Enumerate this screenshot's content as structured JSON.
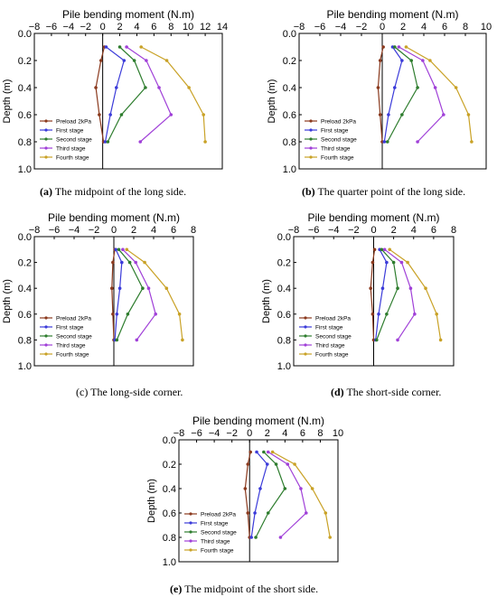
{
  "colors": {
    "preload": "#8B3A1E",
    "first": "#3B3BD9",
    "second": "#2E7D2E",
    "third": "#A040D8",
    "fourth": "#C9A227",
    "axis": "#000000"
  },
  "chart_data": [
    {
      "type": "line",
      "id": "a",
      "panel_letter": "(a)",
      "caption": "The midpoint of the long side.",
      "xlabel": "Pile bending moment (N.m)",
      "ylabel": "Depth (m)",
      "xlim": [
        -8,
        14
      ],
      "xticks": [
        -8,
        -6,
        -4,
        -2,
        0,
        2,
        4,
        6,
        8,
        10,
        12,
        14
      ],
      "xtick_labels": [
        "−8",
        "−6",
        "−4",
        "−2",
        "0",
        "2",
        "4",
        "6",
        "8",
        "10",
        "12",
        "14"
      ],
      "ylim": [
        0.0,
        1.0
      ],
      "yticks": [
        0.0,
        0.2,
        0.4,
        0.6,
        0.8,
        1.0
      ],
      "ytick_labels": [
        "0.0",
        "0.2",
        "0.4",
        "0.6",
        "0.8",
        "1.0"
      ],
      "legend": "lower-left",
      "grid": false,
      "series": [
        {
          "name": "Preload 2kPa",
          "color_key": "preload",
          "points": [
            [
              0.2,
              0.1
            ],
            [
              -0.2,
              0.2
            ],
            [
              -0.8,
              0.4
            ],
            [
              -0.4,
              0.6
            ],
            [
              0.1,
              0.8
            ]
          ]
        },
        {
          "name": "First stage",
          "color_key": "first",
          "points": [
            [
              0.4,
              0.1
            ],
            [
              2.5,
              0.2
            ],
            [
              1.6,
              0.4
            ],
            [
              0.9,
              0.6
            ],
            [
              0.3,
              0.8
            ]
          ]
        },
        {
          "name": "Second stage",
          "color_key": "second",
          "points": [
            [
              2.0,
              0.1
            ],
            [
              3.7,
              0.2
            ],
            [
              5.0,
              0.4
            ],
            [
              2.2,
              0.6
            ],
            [
              0.6,
              0.8
            ]
          ]
        },
        {
          "name": "Third stage",
          "color_key": "third",
          "points": [
            [
              2.8,
              0.1
            ],
            [
              5.1,
              0.2
            ],
            [
              6.6,
              0.4
            ],
            [
              8.0,
              0.6
            ],
            [
              4.4,
              0.8
            ]
          ]
        },
        {
          "name": "Fourth stage",
          "color_key": "fourth",
          "points": [
            [
              4.5,
              0.1
            ],
            [
              7.5,
              0.2
            ],
            [
              10.1,
              0.4
            ],
            [
              11.8,
              0.6
            ],
            [
              12.0,
              0.8
            ]
          ]
        }
      ]
    },
    {
      "type": "line",
      "id": "b",
      "panel_letter": "(b)",
      "caption": "The quarter point of the long side.",
      "xlabel": "Pile bending moment (N.m)",
      "ylabel": "Depth (m)",
      "xlim": [
        -8,
        10
      ],
      "xticks": [
        -8,
        -6,
        -4,
        -2,
        0,
        2,
        4,
        6,
        8,
        10
      ],
      "xtick_labels": [
        "−8",
        "−6",
        "−4",
        "−2",
        "0",
        "2",
        "4",
        "6",
        "8",
        "10"
      ],
      "ylim": [
        0.0,
        1.0
      ],
      "yticks": [
        0.0,
        0.2,
        0.4,
        0.6,
        0.8,
        1.0
      ],
      "ytick_labels": [
        "0.0",
        "0.2",
        "0.4",
        "0.6",
        "0.8",
        "1.0"
      ],
      "legend": "lower-left",
      "grid": false,
      "series": [
        {
          "name": "Preload 2kPa",
          "color_key": "preload",
          "points": [
            [
              0.1,
              0.1
            ],
            [
              -0.2,
              0.2
            ],
            [
              -0.4,
              0.4
            ],
            [
              -0.2,
              0.6
            ],
            [
              0.0,
              0.8
            ]
          ]
        },
        {
          "name": "First stage",
          "color_key": "first",
          "points": [
            [
              1.0,
              0.1
            ],
            [
              1.9,
              0.2
            ],
            [
              1.2,
              0.4
            ],
            [
              0.6,
              0.6
            ],
            [
              0.2,
              0.8
            ]
          ]
        },
        {
          "name": "Second stage",
          "color_key": "second",
          "points": [
            [
              1.2,
              0.1
            ],
            [
              2.8,
              0.2
            ],
            [
              3.4,
              0.4
            ],
            [
              1.9,
              0.6
            ],
            [
              0.5,
              0.8
            ]
          ]
        },
        {
          "name": "Third stage",
          "color_key": "third",
          "points": [
            [
              1.6,
              0.1
            ],
            [
              3.9,
              0.2
            ],
            [
              5.1,
              0.4
            ],
            [
              5.9,
              0.6
            ],
            [
              3.4,
              0.8
            ]
          ]
        },
        {
          "name": "Fourth stage",
          "color_key": "fourth",
          "points": [
            [
              2.3,
              0.1
            ],
            [
              4.6,
              0.2
            ],
            [
              7.1,
              0.4
            ],
            [
              8.3,
              0.6
            ],
            [
              8.6,
              0.8
            ]
          ]
        }
      ]
    },
    {
      "type": "line",
      "id": "c",
      "panel_letter": "(c)",
      "caption": "The long-side corner.",
      "xlabel": "Pile bending moment (N.m)",
      "ylabel": "Depth (m)",
      "xlim": [
        -8,
        8
      ],
      "xticks": [
        -8,
        -6,
        -4,
        -2,
        0,
        2,
        4,
        6,
        8
      ],
      "xtick_labels": [
        "−8",
        "−6",
        "−4",
        "−2",
        "0",
        "2",
        "4",
        "6",
        "8"
      ],
      "ylim": [
        0.0,
        1.0
      ],
      "yticks": [
        0.0,
        0.2,
        0.4,
        0.6,
        0.8,
        1.0
      ],
      "ytick_labels": [
        "0.0",
        "0.2",
        "0.4",
        "0.6",
        "0.8",
        "1.0"
      ],
      "legend": "lower-left",
      "grid": false,
      "series": [
        {
          "name": "Preload 2kPa",
          "color_key": "preload",
          "points": [
            [
              0.1,
              0.1
            ],
            [
              -0.1,
              0.2
            ],
            [
              -0.2,
              0.4
            ],
            [
              -0.1,
              0.6
            ],
            [
              0.0,
              0.8
            ]
          ]
        },
        {
          "name": "First stage",
          "color_key": "first",
          "points": [
            [
              0.2,
              0.1
            ],
            [
              0.8,
              0.2
            ],
            [
              0.6,
              0.4
            ],
            [
              0.3,
              0.6
            ],
            [
              0.1,
              0.8
            ]
          ]
        },
        {
          "name": "Second stage",
          "color_key": "second",
          "points": [
            [
              0.5,
              0.1
            ],
            [
              1.6,
              0.2
            ],
            [
              2.9,
              0.4
            ],
            [
              1.4,
              0.6
            ],
            [
              0.3,
              0.8
            ]
          ]
        },
        {
          "name": "Third stage",
          "color_key": "third",
          "points": [
            [
              0.9,
              0.1
            ],
            [
              2.2,
              0.2
            ],
            [
              3.5,
              0.4
            ],
            [
              4.2,
              0.6
            ],
            [
              2.3,
              0.8
            ]
          ]
        },
        {
          "name": "Fourth stage",
          "color_key": "fourth",
          "points": [
            [
              1.3,
              0.1
            ],
            [
              3.1,
              0.2
            ],
            [
              5.3,
              0.4
            ],
            [
              6.6,
              0.6
            ],
            [
              6.9,
              0.8
            ]
          ]
        }
      ]
    },
    {
      "type": "line",
      "id": "d",
      "panel_letter": "(d)",
      "caption": "The short-side corner.",
      "xlabel": "Pile bending moment (N.m)",
      "ylabel": "Depth (m)",
      "xlim": [
        -8,
        8
      ],
      "xticks": [
        -8,
        -6,
        -4,
        -2,
        0,
        2,
        4,
        6,
        8
      ],
      "xtick_labels": [
        "−8",
        "−6",
        "−4",
        "−2",
        "0",
        "2",
        "4",
        "6",
        "8"
      ],
      "ylim": [
        0.0,
        1.0
      ],
      "yticks": [
        0.0,
        0.2,
        0.4,
        0.6,
        0.8,
        1.0
      ],
      "ytick_labels": [
        "0.0",
        "0.2",
        "0.4",
        "0.6",
        "0.8",
        "1.0"
      ],
      "legend": "lower-left",
      "grid": false,
      "series": [
        {
          "name": "Preload 2kPa",
          "color_key": "preload",
          "points": [
            [
              0.1,
              0.1
            ],
            [
              -0.1,
              0.2
            ],
            [
              -0.3,
              0.4
            ],
            [
              -0.1,
              0.6
            ],
            [
              0.0,
              0.8
            ]
          ]
        },
        {
          "name": "First stage",
          "color_key": "first",
          "points": [
            [
              0.6,
              0.1
            ],
            [
              1.3,
              0.2
            ],
            [
              0.9,
              0.4
            ],
            [
              0.5,
              0.6
            ],
            [
              0.2,
              0.8
            ]
          ]
        },
        {
          "name": "Second stage",
          "color_key": "second",
          "points": [
            [
              0.8,
              0.1
            ],
            [
              2.0,
              0.2
            ],
            [
              2.4,
              0.4
            ],
            [
              1.3,
              0.6
            ],
            [
              0.3,
              0.8
            ]
          ]
        },
        {
          "name": "Third stage",
          "color_key": "third",
          "points": [
            [
              1.1,
              0.1
            ],
            [
              2.8,
              0.2
            ],
            [
              3.7,
              0.4
            ],
            [
              4.1,
              0.6
            ],
            [
              2.4,
              0.8
            ]
          ]
        },
        {
          "name": "Fourth stage",
          "color_key": "fourth",
          "points": [
            [
              1.6,
              0.1
            ],
            [
              3.4,
              0.2
            ],
            [
              5.2,
              0.4
            ],
            [
              6.3,
              0.6
            ],
            [
              6.7,
              0.8
            ]
          ]
        }
      ]
    },
    {
      "type": "line",
      "id": "e",
      "panel_letter": "(e)",
      "caption": "The midpoint of the short side.",
      "xlabel": "Pile bending moment (N.m)",
      "ylabel": "Depth (m)",
      "xlim": [
        -8,
        10
      ],
      "xticks": [
        -8,
        -6,
        -4,
        -2,
        0,
        2,
        4,
        6,
        8,
        10
      ],
      "xtick_labels": [
        "−8",
        "−6",
        "−4",
        "−2",
        "0",
        "2",
        "4",
        "6",
        "8",
        "10"
      ],
      "ylim": [
        0.0,
        1.0
      ],
      "yticks": [
        0.0,
        0.2,
        0.4,
        0.6,
        0.8,
        1.0
      ],
      "ytick_labels": [
        "0.0",
        "0.2",
        "0.4",
        "0.6",
        "0.8",
        "1.0"
      ],
      "legend": "lower-left",
      "grid": false,
      "series": [
        {
          "name": "Preload 2kPa",
          "color_key": "preload",
          "points": [
            [
              0.1,
              0.1
            ],
            [
              -0.2,
              0.2
            ],
            [
              -0.5,
              0.4
            ],
            [
              -0.2,
              0.6
            ],
            [
              0.0,
              0.8
            ]
          ]
        },
        {
          "name": "First stage",
          "color_key": "first",
          "points": [
            [
              0.8,
              0.1
            ],
            [
              2.0,
              0.2
            ],
            [
              1.2,
              0.4
            ],
            [
              0.6,
              0.6
            ],
            [
              0.2,
              0.8
            ]
          ]
        },
        {
          "name": "Second stage",
          "color_key": "second",
          "points": [
            [
              1.6,
              0.1
            ],
            [
              3.0,
              0.2
            ],
            [
              4.0,
              0.4
            ],
            [
              2.1,
              0.6
            ],
            [
              0.7,
              0.8
            ]
          ]
        },
        {
          "name": "Third stage",
          "color_key": "third",
          "points": [
            [
              2.1,
              0.1
            ],
            [
              4.3,
              0.2
            ],
            [
              5.8,
              0.4
            ],
            [
              6.4,
              0.6
            ],
            [
              3.5,
              0.8
            ]
          ]
        },
        {
          "name": "Fourth stage",
          "color_key": "fourth",
          "points": [
            [
              2.6,
              0.1
            ],
            [
              5.1,
              0.2
            ],
            [
              7.1,
              0.4
            ],
            [
              8.6,
              0.6
            ],
            [
              9.1,
              0.8
            ]
          ]
        }
      ]
    }
  ]
}
